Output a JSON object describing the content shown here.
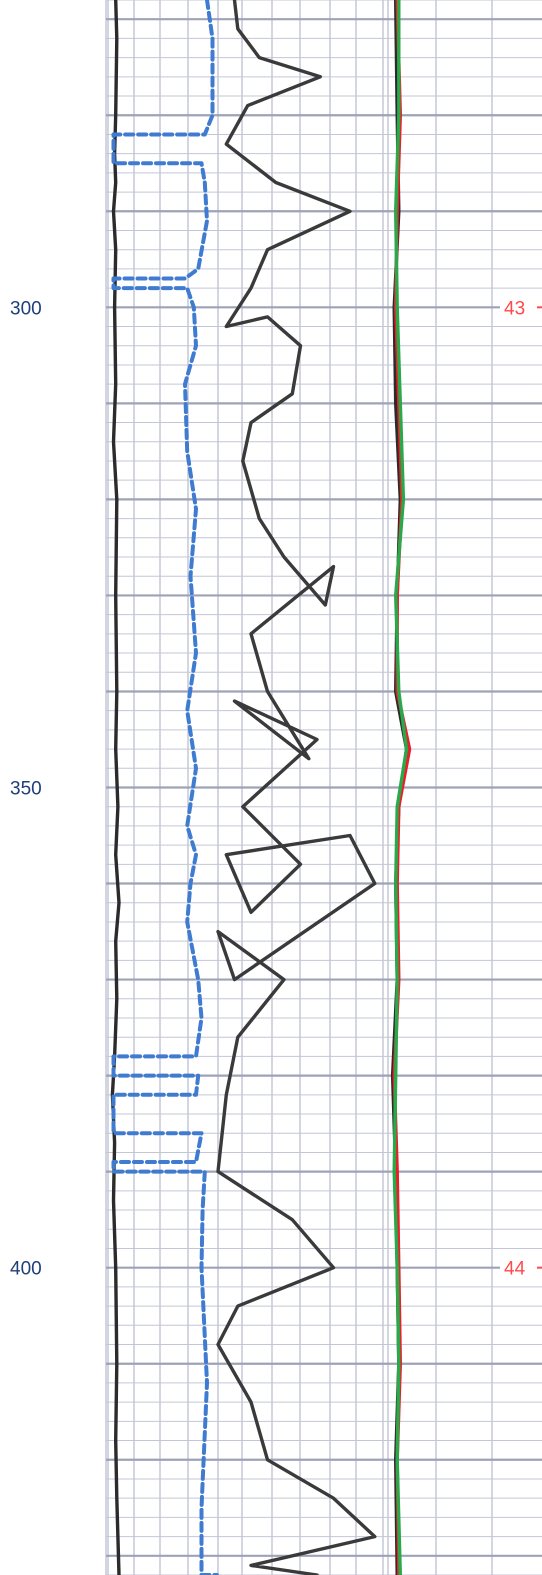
{
  "chart_data": {
    "type": "line",
    "title": "",
    "ylabel": "",
    "y_axis": {
      "range": [
        268,
        432
      ],
      "reversed": true,
      "major_step": 10,
      "minor_step": 2
    },
    "grid": true,
    "depth_ticks": [
      {
        "value": 300,
        "label": "300"
      },
      {
        "value": 350,
        "label": "350"
      },
      {
        "value": 400,
        "label": "400"
      }
    ],
    "reference_labels": [
      {
        "depth": 300,
        "label": "43"
      },
      {
        "depth": 400,
        "label": "44"
      }
    ],
    "tracks": [
      {
        "range": [
          0,
          1
        ],
        "series": [
          {
            "color": "#2b2b2b",
            "style": "solid",
            "points": [
              [
                0.07,
                268
              ],
              [
                0.08,
                272
              ],
              [
                0.07,
                280
              ],
              [
                0.06,
                284
              ],
              [
                0.07,
                287
              ],
              [
                0.05,
                290
              ],
              [
                0.07,
                294
              ],
              [
                0.06,
                300
              ],
              [
                0.07,
                308
              ],
              [
                0.05,
                314
              ],
              [
                0.08,
                320
              ],
              [
                0.07,
                330
              ],
              [
                0.08,
                340
              ],
              [
                0.07,
                346
              ],
              [
                0.09,
                352
              ],
              [
                0.07,
                357
              ],
              [
                0.1,
                362
              ],
              [
                0.07,
                366
              ],
              [
                0.08,
                372
              ],
              [
                0.06,
                378
              ],
              [
                0.04,
                382
              ],
              [
                0.06,
                387
              ],
              [
                0.05,
                393
              ],
              [
                0.07,
                400
              ],
              [
                0.08,
                410
              ],
              [
                0.07,
                418
              ],
              [
                0.08,
                424
              ],
              [
                0.09,
                428
              ],
              [
                0.1,
                432
              ]
            ]
          },
          {
            "color": "#3f7bd0",
            "style": "dashed",
            "points": [
              [
                0.9,
                268
              ],
              [
                0.95,
                272
              ],
              [
                0.95,
                280
              ],
              [
                0.88,
                282
              ],
              [
                0.05,
                282
              ],
              [
                0.05,
                285
              ],
              [
                0.85,
                285
              ],
              [
                0.88,
                287
              ],
              [
                0.9,
                291
              ],
              [
                0.82,
                296
              ],
              [
                0.7,
                297
              ],
              [
                0.05,
                297
              ],
              [
                0.05,
                298
              ],
              [
                0.72,
                298
              ],
              [
                0.78,
                300
              ],
              [
                0.8,
                304
              ],
              [
                0.7,
                308
              ],
              [
                0.72,
                315
              ],
              [
                0.8,
                321
              ],
              [
                0.75,
                328
              ],
              [
                0.8,
                336
              ],
              [
                0.72,
                342
              ],
              [
                0.8,
                348
              ],
              [
                0.72,
                354
              ],
              [
                0.8,
                357
              ],
              [
                0.75,
                360
              ],
              [
                0.72,
                364
              ],
              [
                0.82,
                370
              ],
              [
                0.85,
                374
              ],
              [
                0.8,
                378
              ],
              [
                0.05,
                378
              ],
              [
                0.05,
                380
              ],
              [
                0.82,
                380
              ],
              [
                0.8,
                382
              ],
              [
                0.05,
                382
              ],
              [
                0.05,
                386
              ],
              [
                0.85,
                386
              ],
              [
                0.8,
                389
              ],
              [
                0.05,
                389
              ],
              [
                0.05,
                390
              ],
              [
                0.88,
                390
              ],
              [
                0.86,
                394
              ],
              [
                0.85,
                400
              ],
              [
                0.9,
                412
              ],
              [
                0.85,
                425
              ],
              [
                0.85,
                432
              ],
              [
                0.99,
                432
              ]
            ]
          }
        ]
      },
      {
        "range": [
          0,
          1
        ],
        "series": [
          {
            "color": "#3a3a3a",
            "style": "solid",
            "points": [
              [
                0.1,
                268
              ],
              [
                0.12,
                271
              ],
              [
                0.25,
                274
              ],
              [
                0.62,
                276
              ],
              [
                0.18,
                279
              ],
              [
                0.05,
                283
              ],
              [
                0.35,
                287
              ],
              [
                0.8,
                290
              ],
              [
                0.3,
                294
              ],
              [
                0.2,
                298
              ],
              [
                0.05,
                302
              ],
              [
                0.3,
                301
              ],
              [
                0.5,
                304
              ],
              [
                0.45,
                309
              ],
              [
                0.2,
                312
              ],
              [
                0.15,
                316
              ],
              [
                0.25,
                322
              ],
              [
                0.4,
                326
              ],
              [
                0.65,
                331
              ],
              [
                0.7,
                327
              ],
              [
                0.2,
                334
              ],
              [
                0.3,
                340
              ],
              [
                0.55,
                347
              ],
              [
                0.1,
                341
              ],
              [
                0.6,
                345
              ],
              [
                0.15,
                352
              ],
              [
                0.5,
                358
              ],
              [
                0.2,
                363
              ],
              [
                0.05,
                357
              ],
              [
                0.8,
                355
              ],
              [
                0.95,
                360
              ],
              [
                0.1,
                370
              ],
              [
                0.0,
                365
              ],
              [
                0.4,
                370
              ],
              [
                0.12,
                376
              ],
              [
                0.05,
                382
              ],
              [
                0.0,
                390
              ],
              [
                0.45,
                395
              ],
              [
                0.7,
                400
              ],
              [
                0.12,
                404
              ],
              [
                0.0,
                408
              ],
              [
                0.2,
                414
              ],
              [
                0.3,
                420
              ],
              [
                0.7,
                424
              ],
              [
                0.95,
                428
              ],
              [
                0.2,
                431
              ],
              [
                0.6,
                432
              ]
            ]
          }
        ]
      },
      {
        "range": [
          0,
          1
        ],
        "series": [
          {
            "color": "#2b2b2b",
            "style": "solid",
            "points": [
              [
                0.05,
                268
              ],
              [
                0.06,
                280
              ],
              [
                0.07,
                290
              ],
              [
                0.04,
                300
              ],
              [
                0.05,
                310
              ],
              [
                0.08,
                320
              ],
              [
                0.06,
                330
              ],
              [
                0.05,
                340
              ],
              [
                0.12,
                346
              ],
              [
                0.07,
                352
              ],
              [
                0.05,
                360
              ],
              [
                0.06,
                370
              ],
              [
                0.03,
                380
              ],
              [
                0.05,
                390
              ],
              [
                0.06,
                400
              ],
              [
                0.07,
                410
              ],
              [
                0.05,
                420
              ],
              [
                0.06,
                432
              ]
            ]
          },
          {
            "color": "#e8202a",
            "style": "solid",
            "points": [
              [
                0.06,
                268
              ],
              [
                0.08,
                280
              ],
              [
                0.06,
                290
              ],
              [
                0.05,
                300
              ],
              [
                0.07,
                310
              ],
              [
                0.09,
                320
              ],
              [
                0.06,
                330
              ],
              [
                0.06,
                340
              ],
              [
                0.14,
                346
              ],
              [
                0.07,
                352
              ],
              [
                0.06,
                360
              ],
              [
                0.07,
                370
              ],
              [
                0.04,
                380
              ],
              [
                0.06,
                390
              ],
              [
                0.07,
                400
              ],
              [
                0.08,
                410
              ],
              [
                0.06,
                420
              ],
              [
                0.07,
                432
              ]
            ]
          },
          {
            "color": "#2aa84a",
            "style": "solid",
            "points": [
              [
                0.07,
                268
              ],
              [
                0.07,
                280
              ],
              [
                0.05,
                290
              ],
              [
                0.06,
                300
              ],
              [
                0.08,
                310
              ],
              [
                0.1,
                320
              ],
              [
                0.05,
                330
              ],
              [
                0.07,
                340
              ],
              [
                0.12,
                346
              ],
              [
                0.06,
                352
              ],
              [
                0.05,
                360
              ],
              [
                0.06,
                370
              ],
              [
                0.05,
                380
              ],
              [
                0.04,
                390
              ],
              [
                0.06,
                400
              ],
              [
                0.07,
                410
              ],
              [
                0.06,
                420
              ],
              [
                0.08,
                432
              ]
            ]
          }
        ]
      }
    ]
  }
}
